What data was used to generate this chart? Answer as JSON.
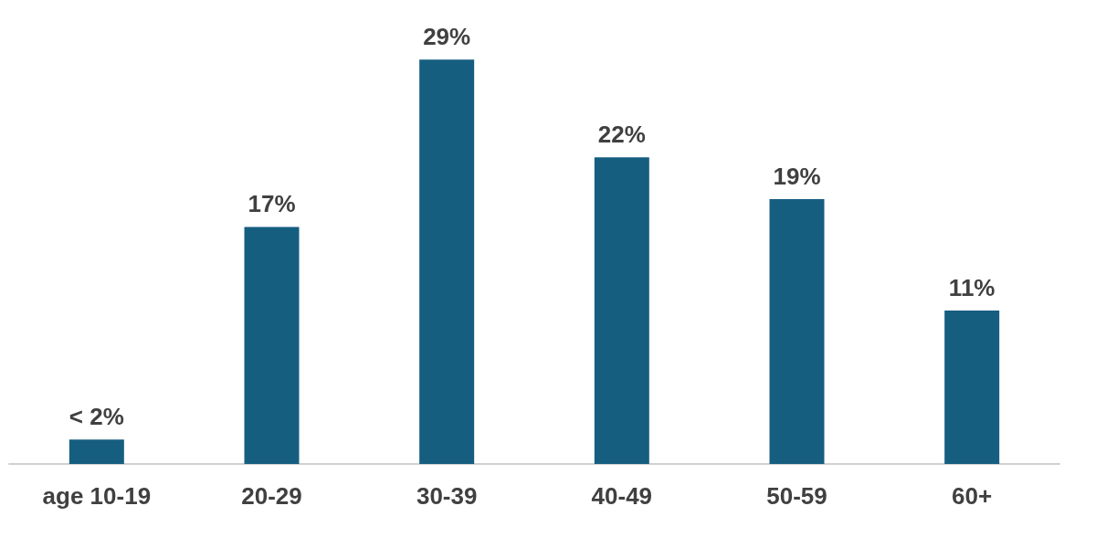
{
  "chart_data": {
    "type": "bar",
    "categories": [
      "age 10-19",
      "20-29",
      "30-39",
      "40-49",
      "50-59",
      "60+"
    ],
    "values": [
      1.75,
      17,
      29,
      22,
      19,
      11
    ],
    "value_labels": [
      "< 2%",
      "17%",
      "29%",
      "22%",
      "19%",
      "11%"
    ],
    "color": "#165e80"
  }
}
